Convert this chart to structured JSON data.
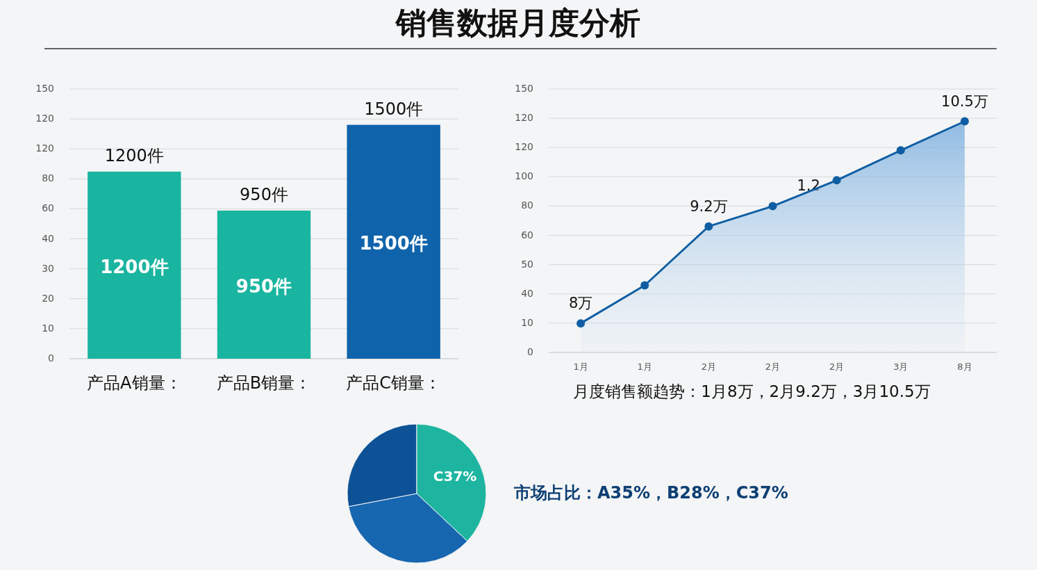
{
  "chart_data": [
    {
      "type": "bar",
      "title": "销售数据月度分析",
      "categories": [
        "产品A销量",
        "产品B销量",
        "产品C销量"
      ],
      "values": [
        1200,
        950,
        1500
      ],
      "colors": [
        "#1ab5a0",
        "#1ab5a0",
        "#0f63ab"
      ],
      "value_labels": [
        "1200件",
        "950件",
        "1500件"
      ],
      "ylim": [
        0,
        1730
      ],
      "grid": "y",
      "annotations": [
        "0",
        "10",
        "20",
        "30",
        "40",
        "60",
        "80",
        "120",
        "120",
        "150",
        "：",
        "：",
        "："
      ]
    },
    {
      "type": "area",
      "categories": [
        "1月",
        "1月",
        "2月",
        "2月",
        "2月",
        "3月",
        "8月"
      ],
      "values": [
        8,
        8.47,
        9.2,
        9.45,
        9.77,
        10.14,
        10.5
      ],
      "color": "#0f5ea3",
      "marker": "circle",
      "value_labels": [
        "8万",
        null,
        "9.2万",
        null,
        null,
        null,
        "10.5万"
      ],
      "xlabel": "月度销售额趋势：1月8万，2月9.2万，3月10.5万",
      "ylim": [
        7.64,
        10.9
      ],
      "grid": "y",
      "annotations": [
        "0",
        "10",
        "40",
        "50",
        "60",
        "80",
        "100",
        "120",
        "120",
        "150",
        "1.2"
      ]
    },
    {
      "type": "pie",
      "categories": [
        null,
        null,
        null
      ],
      "values": [
        35,
        28,
        37
      ],
      "colors": [
        "#1666b0",
        "#0d5296",
        "#1eb5a0"
      ],
      "value_labels": [
        null,
        null,
        "C37%"
      ],
      "annotations": [
        "市场占比：A35%，B28%，C37%"
      ]
    }
  ]
}
